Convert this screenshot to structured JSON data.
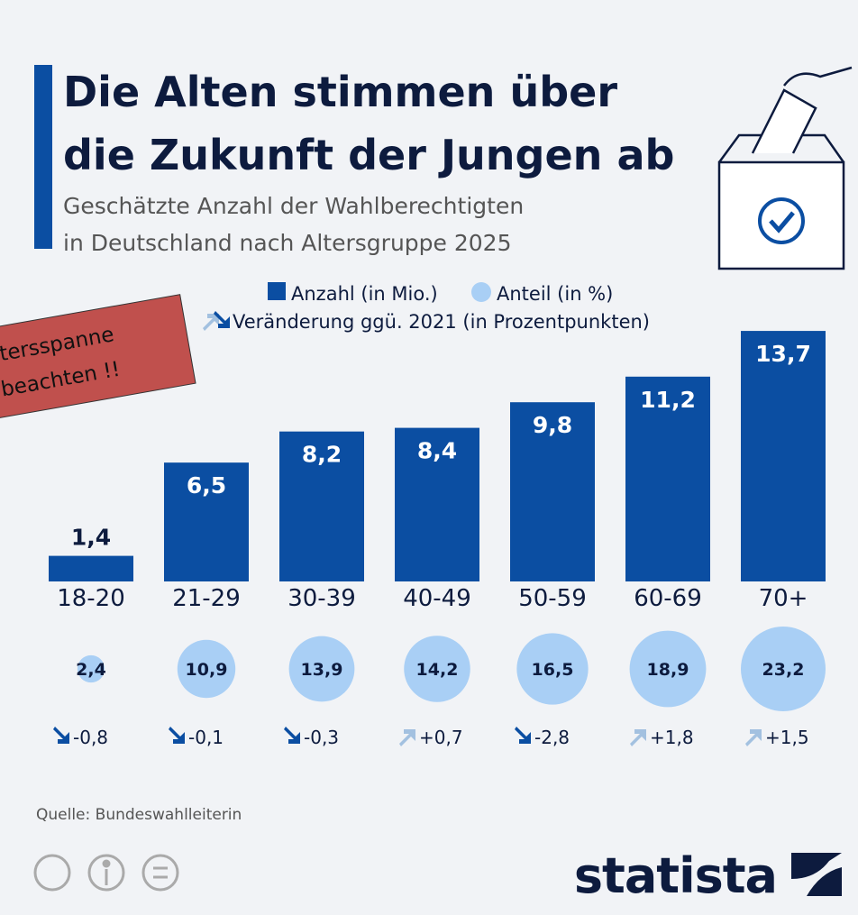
{
  "chart_data": {
    "type": "bar",
    "title": [
      "Die Alten stimmen über",
      "die Zukunft der Jungen ab"
    ],
    "subtitle": [
      "Geschätzte Anzahl der Wahlberechtigten",
      "in Deutschland nach Altersgruppe 2025"
    ],
    "categories": [
      "18-20",
      "21-29",
      "30-39",
      "40-49",
      "50-59",
      "60-69",
      "70+"
    ],
    "series": [
      {
        "name": "Anzahl (in Mio.)",
        "color": "#0b4ea2",
        "values": [
          1.4,
          6.5,
          8.2,
          8.4,
          9.8,
          11.2,
          13.7
        ],
        "value_labels": [
          "1,4",
          "6,5",
          "8,2",
          "8,4",
          "9,8",
          "11,2",
          "13,7"
        ]
      }
    ],
    "ylim": [
      0,
      14
    ],
    "shares": {
      "name": "Anteil (in %)",
      "color": "#a9cff5",
      "values": [
        2.4,
        10.9,
        13.9,
        14.2,
        16.5,
        18.9,
        23.2
      ],
      "value_labels": [
        "2,4",
        "10,9",
        "13,9",
        "14,2",
        "16,5",
        "18,9",
        "23,2"
      ]
    },
    "changes": {
      "name": "Veränderung ggü. 2021 (in Prozentpunkten)",
      "up_color": "#a3c1e0",
      "down_color": "#0b4ea2",
      "values": [
        -0.8,
        -0.1,
        -0.3,
        0.7,
        -2.8,
        1.8,
        1.5
      ],
      "value_labels": [
        "-0,8",
        "-0,1",
        "-0,3",
        "+0,7",
        "-2,8",
        "+1,8",
        "+1,5"
      ]
    },
    "annotation": [
      "Altersspanne",
      "beachten !!"
    ],
    "source": "Quelle: Bundeswahlleiterin",
    "brand": "statista"
  }
}
